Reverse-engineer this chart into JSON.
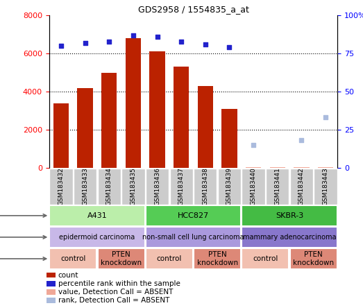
{
  "title": "GDS2958 / 1554835_a_at",
  "samples": [
    "GSM183432",
    "GSM183433",
    "GSM183434",
    "GSM183435",
    "GSM183436",
    "GSM183437",
    "GSM183438",
    "GSM183439",
    "GSM183440",
    "GSM183441",
    "GSM183442",
    "GSM183443"
  ],
  "count_values": [
    3400,
    4200,
    5000,
    6800,
    6100,
    5300,
    4300,
    3100,
    50,
    50,
    50,
    50
  ],
  "count_absent": [
    false,
    false,
    false,
    false,
    false,
    false,
    false,
    false,
    true,
    true,
    true,
    true
  ],
  "rank_values": [
    80,
    82,
    83,
    87,
    86,
    83,
    81,
    79,
    15,
    null,
    18,
    33
  ],
  "rank_absent": [
    false,
    false,
    false,
    false,
    false,
    false,
    false,
    false,
    true,
    false,
    true,
    true
  ],
  "ylim_left": [
    0,
    8000
  ],
  "ylim_right": [
    0,
    100
  ],
  "yticks_left": [
    0,
    2000,
    4000,
    6000,
    8000
  ],
  "yticks_right": [
    0,
    25,
    50,
    75,
    100
  ],
  "yticklabels_right": [
    "0",
    "25",
    "50",
    "75",
    "100%"
  ],
  "bar_color_present": "#bb2200",
  "bar_color_absent": "#f0a898",
  "rank_color_present": "#2222cc",
  "rank_color_absent": "#aabbdd",
  "cell_line_groups": [
    {
      "label": "A431",
      "start": 0,
      "end": 3,
      "color": "#bbeeaa"
    },
    {
      "label": "HCC827",
      "start": 4,
      "end": 7,
      "color": "#55cc55"
    },
    {
      "label": "SKBR-3",
      "start": 8,
      "end": 11,
      "color": "#44bb44"
    }
  ],
  "cell_type_groups": [
    {
      "label": "epidermoid carcinoma",
      "start": 0,
      "end": 3,
      "color": "#c8b8e8"
    },
    {
      "label": "non-small cell lung carcinoma",
      "start": 4,
      "end": 7,
      "color": "#aa99dd"
    },
    {
      "label": "mammary adenocarcinoma",
      "start": 8,
      "end": 11,
      "color": "#8877cc"
    }
  ],
  "protocol_groups": [
    {
      "label": "control",
      "start": 0,
      "end": 1,
      "color": "#f2c0b0"
    },
    {
      "label": "PTEN\nknockdown",
      "start": 2,
      "end": 3,
      "color": "#dd8877"
    },
    {
      "label": "control",
      "start": 4,
      "end": 5,
      "color": "#f2c0b0"
    },
    {
      "label": "PTEN\nknockdown",
      "start": 6,
      "end": 7,
      "color": "#dd8877"
    },
    {
      "label": "control",
      "start": 8,
      "end": 9,
      "color": "#f2c0b0"
    },
    {
      "label": "PTEN\nknockdown",
      "start": 10,
      "end": 11,
      "color": "#dd8877"
    }
  ],
  "legend_items": [
    {
      "label": "count",
      "color": "#bb2200",
      "marker": "s"
    },
    {
      "label": "percentile rank within the sample",
      "color": "#2222cc",
      "marker": "s"
    },
    {
      "label": "value, Detection Call = ABSENT",
      "color": "#f0a898",
      "marker": "s"
    },
    {
      "label": "rank, Detection Call = ABSENT",
      "color": "#aabbdd",
      "marker": "s"
    }
  ],
  "sample_box_color": "#cccccc",
  "arrow_color": "#666666"
}
